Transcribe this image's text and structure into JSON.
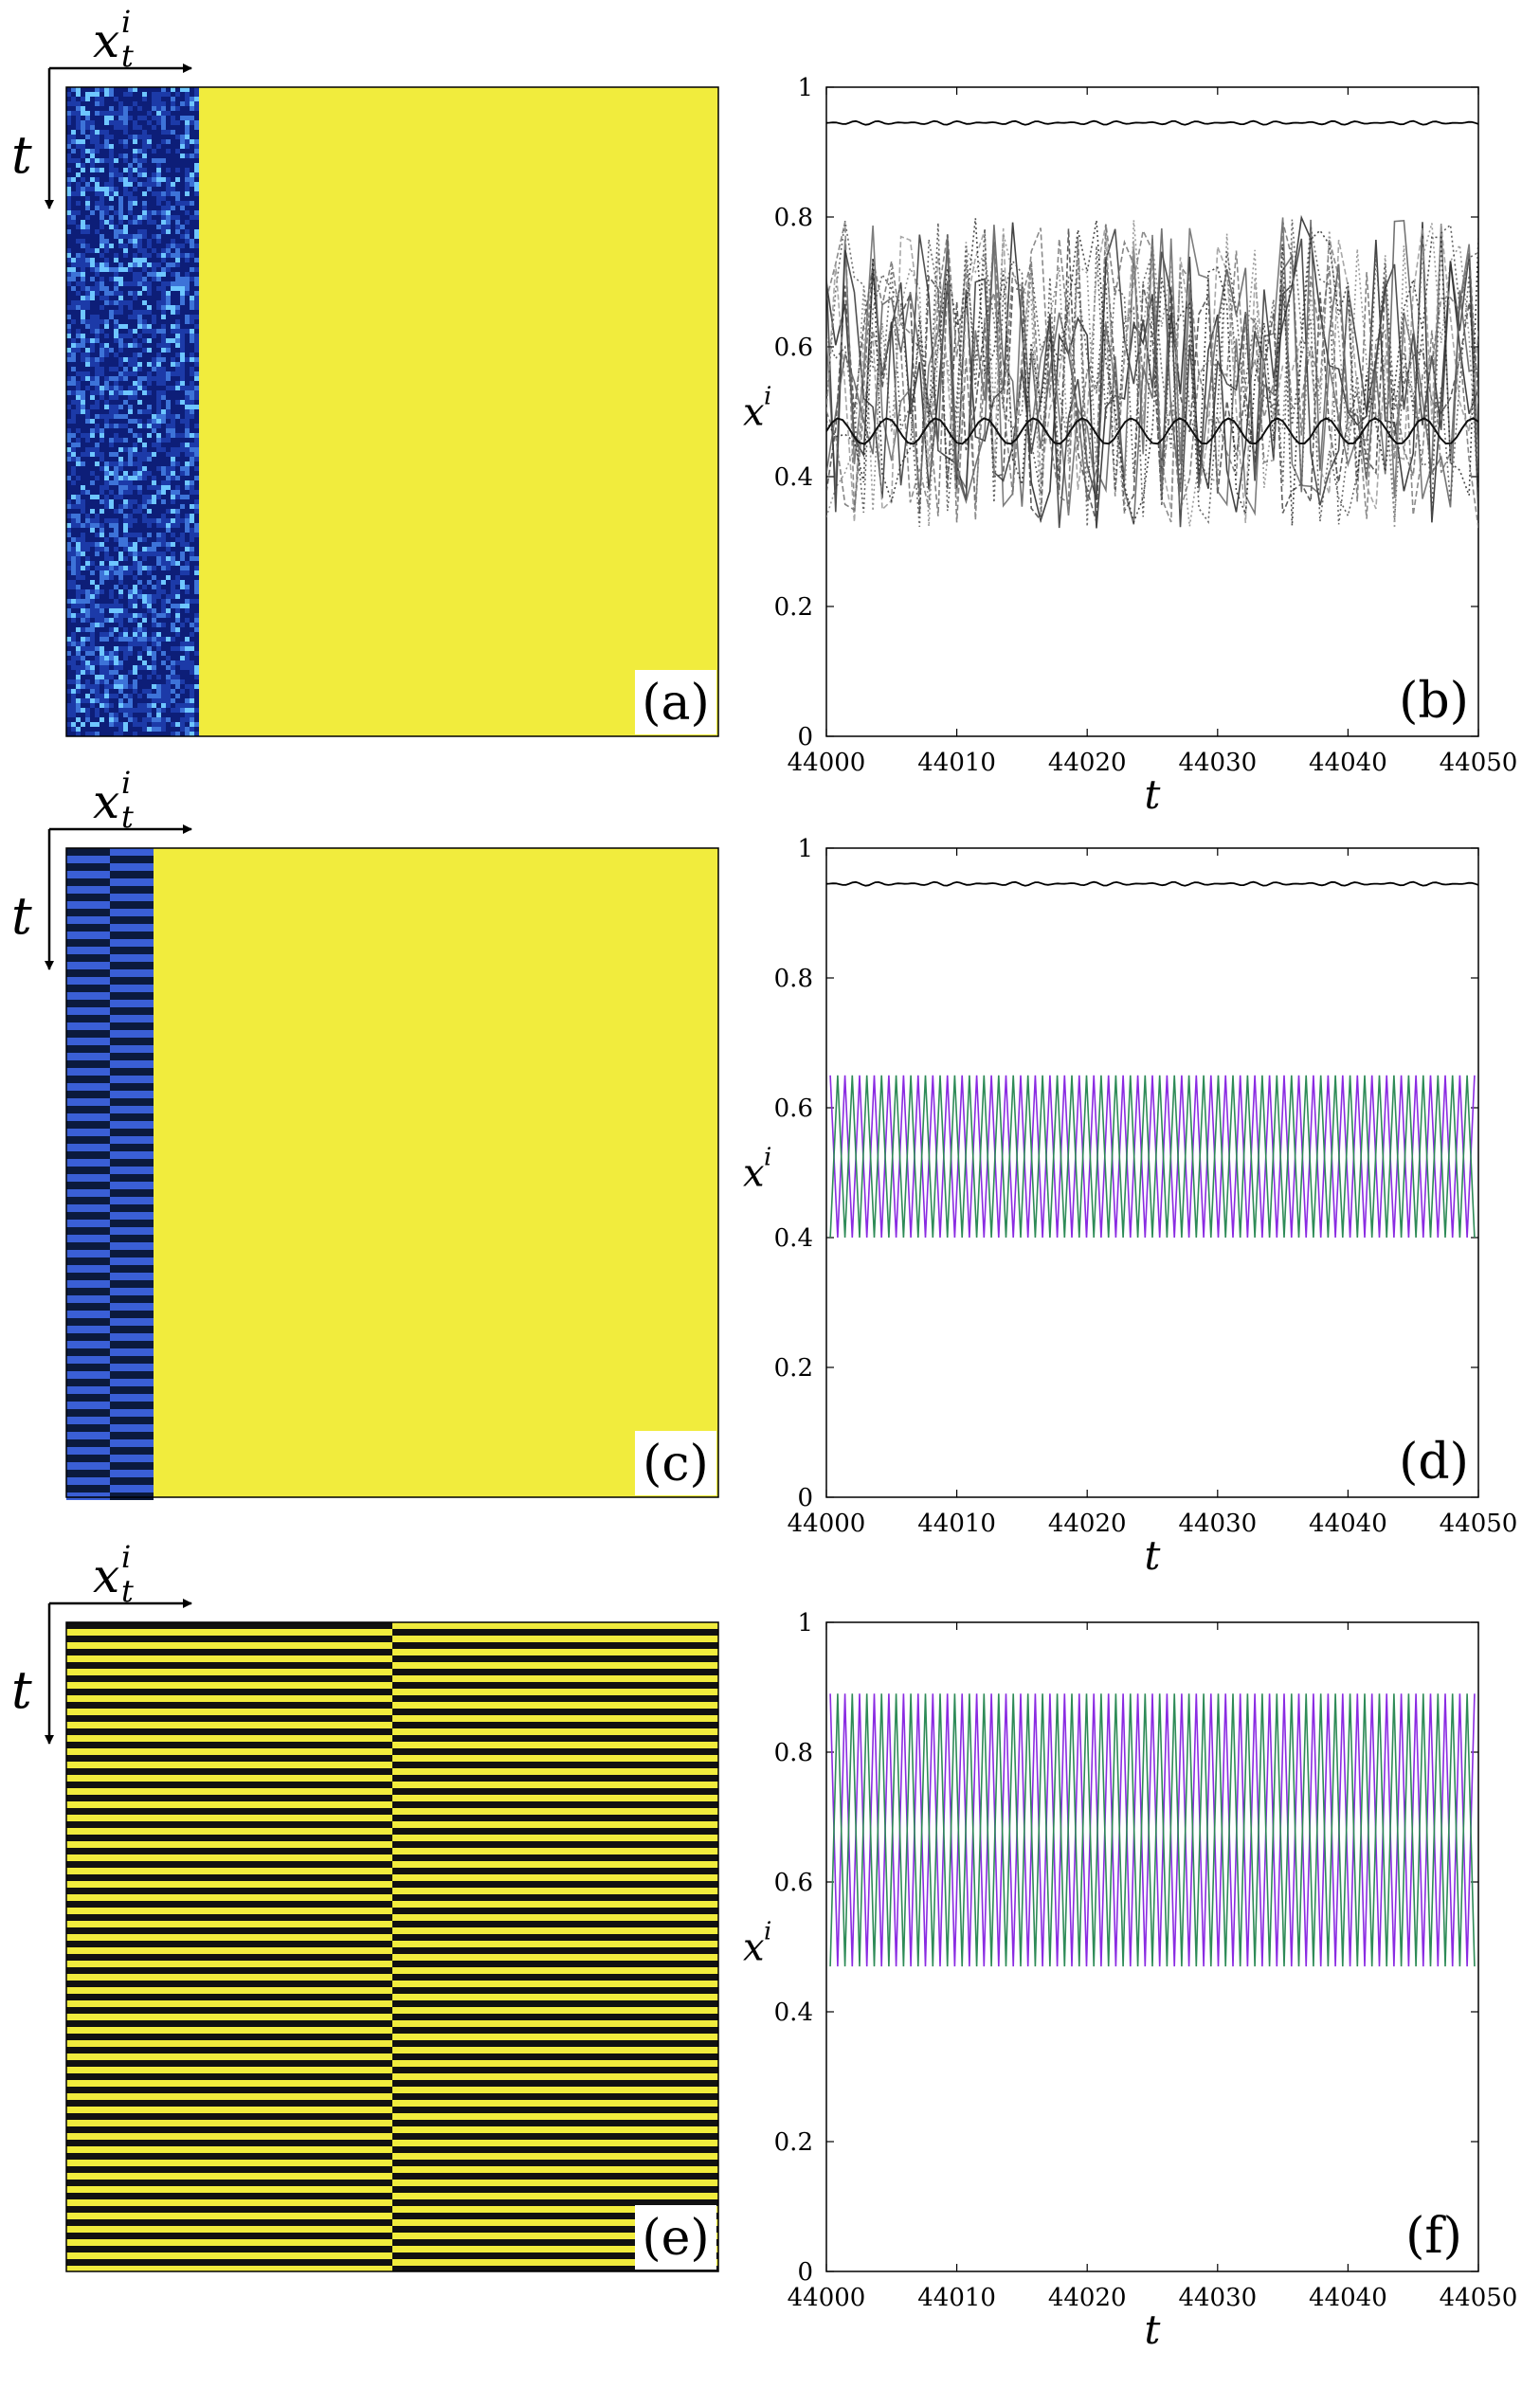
{
  "panels": [
    {
      "id": "a",
      "label": "(a)",
      "kind": "pattern",
      "pattern": "noise",
      "axis_labels": {
        "x": "x",
        "x_sup": "i",
        "x_sub": "t",
        "y": "t"
      }
    },
    {
      "id": "c",
      "label": "(c)",
      "kind": "pattern",
      "pattern": "two-stripe-columns",
      "axis_labels": {
        "x": "x",
        "x_sup": "i",
        "x_sub": "t",
        "y": "t"
      }
    },
    {
      "id": "e",
      "label": "(e)",
      "kind": "pattern",
      "pattern": "full-stripes",
      "axis_labels": {
        "x": "x",
        "x_sup": "i",
        "x_sub": "t",
        "y": "t"
      }
    }
  ],
  "colors": {
    "yellow": "#f1ec3d",
    "noise_dark": "#0c1a6a",
    "noise_light": "#6ec6ff",
    "stripe_blue": "#3a5fd6",
    "stripe_dark": "#0b1a3d",
    "stripe_black": "#111111",
    "purple": "#8a2be2",
    "green": "#2e8b57"
  },
  "chart_data": [
    {
      "id": "b",
      "label": "(b)",
      "type": "line",
      "xlabel": "t",
      "ylabel": "x",
      "ylabel_sup": "i",
      "xlim": [
        44000,
        44050
      ],
      "ylim": [
        0,
        1
      ],
      "xticks": [
        "44000",
        "44010",
        "44020",
        "44030",
        "44040",
        "44050"
      ],
      "yticks": [
        "0",
        "0.2",
        "0.4",
        "0.6",
        "0.8",
        "1"
      ],
      "series": [
        {
          "style": "solid-black",
          "level": 0.945,
          "amplitude": 0.003
        },
        {
          "style": "chaotic-gray",
          "count": 12,
          "range": [
            0.32,
            0.8
          ]
        },
        {
          "style": "black-band",
          "level": 0.47,
          "amplitude": 0.02
        }
      ]
    },
    {
      "id": "d",
      "label": "(d)",
      "type": "line",
      "xlabel": "t",
      "ylabel": "x",
      "ylabel_sup": "i",
      "xlim": [
        44000,
        44050
      ],
      "ylim": [
        0,
        1
      ],
      "xticks": [
        "44000",
        "44010",
        "44020",
        "44030",
        "44040",
        "44050"
      ],
      "yticks": [
        "0",
        "0.2",
        "0.4",
        "0.6",
        "0.8",
        "1"
      ],
      "series": [
        {
          "style": "solid-black",
          "level": 0.945,
          "amplitude": 0.003
        },
        {
          "style": "zigzag",
          "color": "purple",
          "min": 0.4,
          "max": 0.65,
          "phase": 0
        },
        {
          "style": "zigzag",
          "color": "green",
          "min": 0.4,
          "max": 0.65,
          "phase": 1
        }
      ]
    },
    {
      "id": "f",
      "label": "(f)",
      "type": "line",
      "xlabel": "t",
      "ylabel": "x",
      "ylabel_sup": "i",
      "xlim": [
        44000,
        44050
      ],
      "ylim": [
        0,
        1
      ],
      "xticks": [
        "44000",
        "44010",
        "44020",
        "44030",
        "44040",
        "44050"
      ],
      "yticks": [
        "0",
        "0.2",
        "0.4",
        "0.6",
        "0.8",
        "1"
      ],
      "series": [
        {
          "style": "zigzag",
          "color": "purple",
          "min": 0.47,
          "max": 0.89,
          "phase": 0
        },
        {
          "style": "zigzag",
          "color": "green",
          "min": 0.47,
          "max": 0.89,
          "phase": 1
        }
      ]
    }
  ]
}
